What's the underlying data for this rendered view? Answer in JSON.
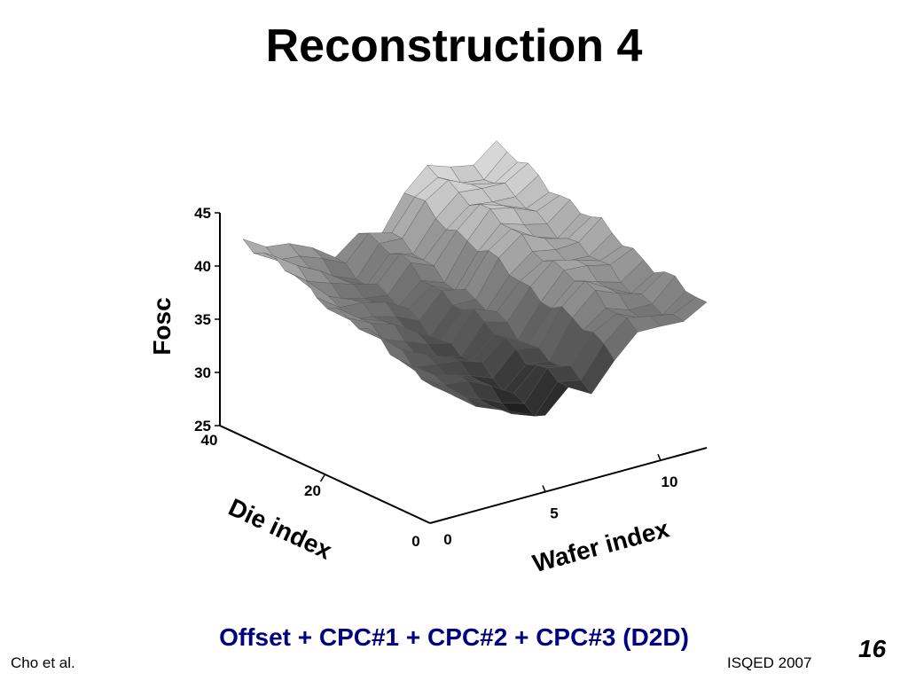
{
  "slide": {
    "title": "Reconstruction 4",
    "caption": "Offset + CPC#1 + CPC#2 + CPC#3 (D2D)",
    "footer_left": "Cho et al.",
    "footer_center": "ISQED 2007",
    "page_number": "16"
  },
  "chart_data": {
    "type": "surface",
    "zlabel": "Fosc",
    "xlabel": "Wafer index",
    "ylabel": "Die index",
    "zticks": [
      "25",
      "30",
      "35",
      "40",
      "45"
    ],
    "xticks": [
      "0",
      "5",
      "10"
    ],
    "yticks": [
      "0",
      "20",
      "40"
    ],
    "zlim": [
      25,
      45
    ],
    "xlim": [
      0,
      12
    ],
    "ylim": [
      0,
      40
    ],
    "colormap": "gray",
    "surface": {
      "wafer_index": [
        1,
        2,
        3,
        4,
        5,
        6,
        7,
        8,
        9,
        10,
        11,
        12
      ],
      "die_index_start": 0,
      "die_index_step": 2,
      "die_index_count": 21,
      "approx_fosc_by_wafer": [
        36.1,
        34.4,
        33.7,
        32.8,
        31.9,
        34.1,
        33.4,
        36.3,
        38.1,
        37.4,
        36.9,
        38.3
      ],
      "approx_fosc_change_over_die_index": 6
    }
  }
}
